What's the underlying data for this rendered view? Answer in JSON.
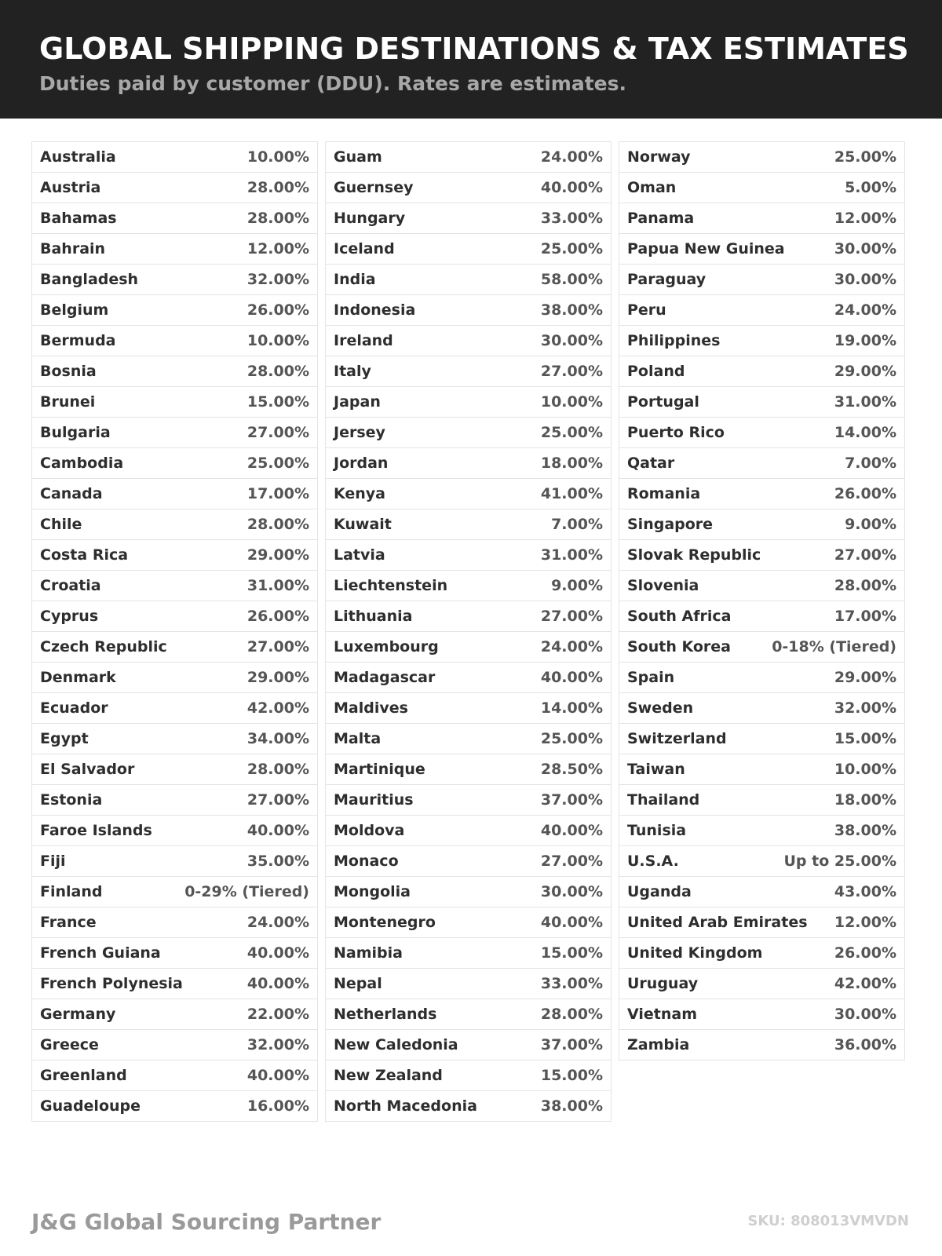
{
  "header": {
    "title": "GLOBAL SHIPPING DESTINATIONS & TAX ESTIMATES",
    "subtitle": "Duties paid by customer (DDU). Rates are estimates."
  },
  "columns": [
    [
      [
        "Australia",
        "10.00%"
      ],
      [
        "Austria",
        "28.00%"
      ],
      [
        "Bahamas",
        "28.00%"
      ],
      [
        "Bahrain",
        "12.00%"
      ],
      [
        "Bangladesh",
        "32.00%"
      ],
      [
        "Belgium",
        "26.00%"
      ],
      [
        "Bermuda",
        "10.00%"
      ],
      [
        "Bosnia",
        "28.00%"
      ],
      [
        "Brunei",
        "15.00%"
      ],
      [
        "Bulgaria",
        "27.00%"
      ],
      [
        "Cambodia",
        "25.00%"
      ],
      [
        "Canada",
        "17.00%"
      ],
      [
        "Chile",
        "28.00%"
      ],
      [
        "Costa Rica",
        "29.00%"
      ],
      [
        "Croatia",
        "31.00%"
      ],
      [
        "Cyprus",
        "26.00%"
      ],
      [
        "Czech Republic",
        "27.00%"
      ],
      [
        "Denmark",
        "29.00%"
      ],
      [
        "Ecuador",
        "42.00%"
      ],
      [
        "Egypt",
        "34.00%"
      ],
      [
        "El Salvador",
        "28.00%"
      ],
      [
        "Estonia",
        "27.00%"
      ],
      [
        "Faroe Islands",
        "40.00%"
      ],
      [
        "Fiji",
        "35.00%"
      ],
      [
        "Finland",
        "0-29% (Tiered)"
      ],
      [
        "France",
        "24.00%"
      ],
      [
        "French Guiana",
        "40.00%"
      ],
      [
        "French Polynesia",
        "40.00%"
      ],
      [
        "Germany",
        "22.00%"
      ],
      [
        "Greece",
        "32.00%"
      ],
      [
        "Greenland",
        "40.00%"
      ],
      [
        "Guadeloupe",
        "16.00%"
      ]
    ],
    [
      [
        "Guam",
        "24.00%"
      ],
      [
        "Guernsey",
        "40.00%"
      ],
      [
        "Hungary",
        "33.00%"
      ],
      [
        "Iceland",
        "25.00%"
      ],
      [
        "India",
        "58.00%"
      ],
      [
        "Indonesia",
        "38.00%"
      ],
      [
        "Ireland",
        "30.00%"
      ],
      [
        "Italy",
        "27.00%"
      ],
      [
        "Japan",
        "10.00%"
      ],
      [
        "Jersey",
        "25.00%"
      ],
      [
        "Jordan",
        "18.00%"
      ],
      [
        "Kenya",
        "41.00%"
      ],
      [
        "Kuwait",
        "7.00%"
      ],
      [
        "Latvia",
        "31.00%"
      ],
      [
        "Liechtenstein",
        "9.00%"
      ],
      [
        "Lithuania",
        "27.00%"
      ],
      [
        "Luxembourg",
        "24.00%"
      ],
      [
        "Madagascar",
        "40.00%"
      ],
      [
        "Maldives",
        "14.00%"
      ],
      [
        "Malta",
        "25.00%"
      ],
      [
        "Martinique",
        "28.50%"
      ],
      [
        "Mauritius",
        "37.00%"
      ],
      [
        "Moldova",
        "40.00%"
      ],
      [
        "Monaco",
        "27.00%"
      ],
      [
        "Mongolia",
        "30.00%"
      ],
      [
        "Montenegro",
        "40.00%"
      ],
      [
        "Namibia",
        "15.00%"
      ],
      [
        "Nepal",
        "33.00%"
      ],
      [
        "Netherlands",
        "28.00%"
      ],
      [
        "New Caledonia",
        "37.00%"
      ],
      [
        "New Zealand",
        "15.00%"
      ],
      [
        "North Macedonia",
        "38.00%"
      ]
    ],
    [
      [
        "Norway",
        "25.00%"
      ],
      [
        "Oman",
        "5.00%"
      ],
      [
        "Panama",
        "12.00%"
      ],
      [
        "Papua New Guinea",
        "30.00%"
      ],
      [
        "Paraguay",
        "30.00%"
      ],
      [
        "Peru",
        "24.00%"
      ],
      [
        "Philippines",
        "19.00%"
      ],
      [
        "Poland",
        "29.00%"
      ],
      [
        "Portugal",
        "31.00%"
      ],
      [
        "Puerto Rico",
        "14.00%"
      ],
      [
        "Qatar",
        "7.00%"
      ],
      [
        "Romania",
        "26.00%"
      ],
      [
        "Singapore",
        "9.00%"
      ],
      [
        "Slovak Republic",
        "27.00%"
      ],
      [
        "Slovenia",
        "28.00%"
      ],
      [
        "South Africa",
        "17.00%"
      ],
      [
        "South Korea",
        "0-18% (Tiered)"
      ],
      [
        "Spain",
        "29.00%"
      ],
      [
        "Sweden",
        "32.00%"
      ],
      [
        "Switzerland",
        "15.00%"
      ],
      [
        "Taiwan",
        "10.00%"
      ],
      [
        "Thailand",
        "18.00%"
      ],
      [
        "Tunisia",
        "38.00%"
      ],
      [
        "U.S.A.",
        "Up to 25.00%"
      ],
      [
        "Uganda",
        "43.00%"
      ],
      [
        "United Arab Emirates",
        "12.00%"
      ],
      [
        "United Kingdom",
        "26.00%"
      ],
      [
        "Uruguay",
        "42.00%"
      ],
      [
        "Vietnam",
        "30.00%"
      ],
      [
        "Zambia",
        "36.00%"
      ]
    ]
  ],
  "footer": {
    "brand": "J&G Global Sourcing Partner",
    "sku": "SKU: 808013VMVDN"
  }
}
